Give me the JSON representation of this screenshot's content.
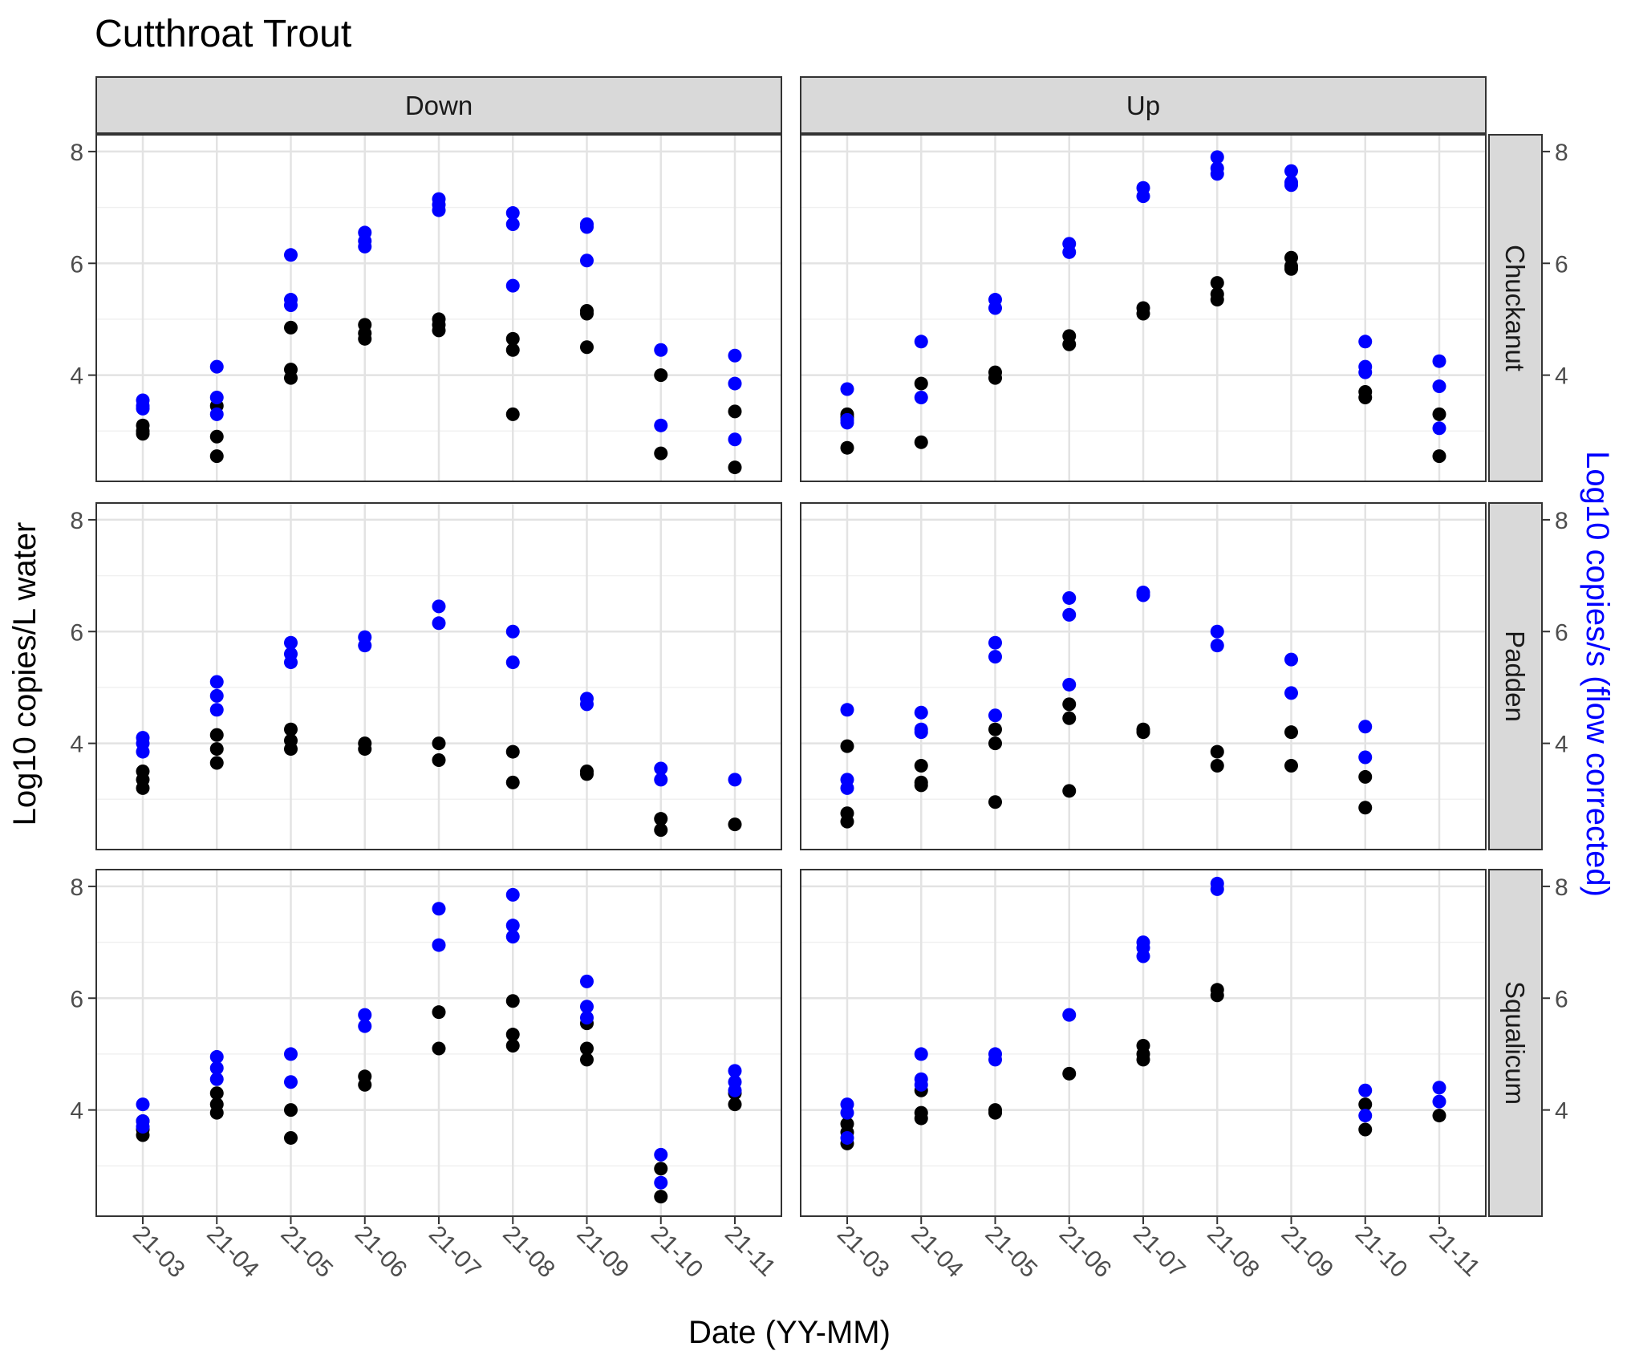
{
  "chart_data": {
    "type": "scatter",
    "title": "Cutthroat Trout",
    "xlabel": "Date (YY-MM)",
    "ylabel": "Log10 copies/L water",
    "ylabel_secondary": "Log10 copies/s (flow corrected)",
    "x_categories": [
      "21-03",
      "21-04",
      "21-05",
      "21-06",
      "21-07",
      "21-08",
      "21-09",
      "21-10",
      "21-11"
    ],
    "y_ticks": [
      4,
      6,
      8
    ],
    "ylim": [
      2.1,
      8.3
    ],
    "grid": true,
    "facet_columns": [
      "Down",
      "Up"
    ],
    "facet_rows": [
      "Chuckanut",
      "Padden",
      "Squalicum"
    ],
    "series_colors": {
      "copies_per_L": "#000000",
      "copies_per_s": "#0000ff"
    },
    "panels": [
      {
        "col": "Down",
        "row": "Chuckanut",
        "copies_per_L": [
          [
            "21-03",
            3.1
          ],
          [
            "21-03",
            3.0
          ],
          [
            "21-03",
            2.95
          ],
          [
            "21-04",
            3.45
          ],
          [
            "21-04",
            2.9
          ],
          [
            "21-04",
            2.55
          ],
          [
            "21-05",
            4.85
          ],
          [
            "21-05",
            4.1
          ],
          [
            "21-05",
            3.95
          ],
          [
            "21-06",
            4.9
          ],
          [
            "21-06",
            4.75
          ],
          [
            "21-06",
            4.65
          ],
          [
            "21-07",
            5.0
          ],
          [
            "21-07",
            4.9
          ],
          [
            "21-07",
            4.8
          ],
          [
            "21-08",
            4.65
          ],
          [
            "21-08",
            4.45
          ],
          [
            "21-08",
            3.3
          ],
          [
            "21-09",
            5.15
          ],
          [
            "21-09",
            5.1
          ],
          [
            "21-09",
            4.5
          ],
          [
            "21-10",
            4.0
          ],
          [
            "21-10",
            2.6
          ],
          [
            "21-11",
            3.35
          ],
          [
            "21-11",
            2.35
          ]
        ],
        "copies_per_s": [
          [
            "21-03",
            3.55
          ],
          [
            "21-03",
            3.45
          ],
          [
            "21-03",
            3.4
          ],
          [
            "21-04",
            4.15
          ],
          [
            "21-04",
            3.6
          ],
          [
            "21-04",
            3.3
          ],
          [
            "21-05",
            6.15
          ],
          [
            "21-05",
            5.35
          ],
          [
            "21-05",
            5.25
          ],
          [
            "21-06",
            6.55
          ],
          [
            "21-06",
            6.4
          ],
          [
            "21-06",
            6.3
          ],
          [
            "21-07",
            7.15
          ],
          [
            "21-07",
            7.05
          ],
          [
            "21-07",
            6.95
          ],
          [
            "21-08",
            6.9
          ],
          [
            "21-08",
            6.7
          ],
          [
            "21-08",
            5.6
          ],
          [
            "21-09",
            6.7
          ],
          [
            "21-09",
            6.65
          ],
          [
            "21-09",
            6.05
          ],
          [
            "21-10",
            4.45
          ],
          [
            "21-10",
            3.1
          ],
          [
            "21-11",
            4.35
          ],
          [
            "21-11",
            3.85
          ],
          [
            "21-11",
            2.85
          ]
        ]
      },
      {
        "col": "Up",
        "row": "Chuckanut",
        "copies_per_L": [
          [
            "21-03",
            3.3
          ],
          [
            "21-03",
            3.25
          ],
          [
            "21-03",
            2.7
          ],
          [
            "21-04",
            3.85
          ],
          [
            "21-04",
            2.8
          ],
          [
            "21-05",
            4.05
          ],
          [
            "21-05",
            3.95
          ],
          [
            "21-06",
            4.7
          ],
          [
            "21-06",
            4.55
          ],
          [
            "21-07",
            5.2
          ],
          [
            "21-07",
            5.1
          ],
          [
            "21-08",
            5.65
          ],
          [
            "21-08",
            5.45
          ],
          [
            "21-08",
            5.35
          ],
          [
            "21-09",
            6.1
          ],
          [
            "21-09",
            5.95
          ],
          [
            "21-09",
            5.9
          ],
          [
            "21-10",
            3.7
          ],
          [
            "21-10",
            3.6
          ],
          [
            "21-11",
            3.3
          ],
          [
            "21-11",
            2.55
          ]
        ],
        "copies_per_s": [
          [
            "21-03",
            3.75
          ],
          [
            "21-03",
            3.2
          ],
          [
            "21-03",
            3.15
          ],
          [
            "21-04",
            4.6
          ],
          [
            "21-04",
            3.6
          ],
          [
            "21-05",
            5.35
          ],
          [
            "21-05",
            5.2
          ],
          [
            "21-06",
            6.35
          ],
          [
            "21-06",
            6.2
          ],
          [
            "21-07",
            7.35
          ],
          [
            "21-07",
            7.2
          ],
          [
            "21-08",
            7.9
          ],
          [
            "21-08",
            7.7
          ],
          [
            "21-08",
            7.6
          ],
          [
            "21-09",
            7.65
          ],
          [
            "21-09",
            7.45
          ],
          [
            "21-09",
            7.4
          ],
          [
            "21-10",
            4.6
          ],
          [
            "21-10",
            4.15
          ],
          [
            "21-10",
            4.05
          ],
          [
            "21-11",
            4.25
          ],
          [
            "21-11",
            3.8
          ],
          [
            "21-11",
            3.05
          ]
        ]
      },
      {
        "col": "Down",
        "row": "Padden",
        "copies_per_L": [
          [
            "21-03",
            3.5
          ],
          [
            "21-03",
            3.35
          ],
          [
            "21-03",
            3.2
          ],
          [
            "21-04",
            4.15
          ],
          [
            "21-04",
            3.9
          ],
          [
            "21-04",
            3.65
          ],
          [
            "21-05",
            4.25
          ],
          [
            "21-05",
            4.05
          ],
          [
            "21-05",
            3.9
          ],
          [
            "21-06",
            4.0
          ],
          [
            "21-06",
            3.9
          ],
          [
            "21-07",
            4.0
          ],
          [
            "21-07",
            3.7
          ],
          [
            "21-08",
            3.85
          ],
          [
            "21-08",
            3.3
          ],
          [
            "21-09",
            3.5
          ],
          [
            "21-09",
            3.45
          ],
          [
            "21-10",
            2.65
          ],
          [
            "21-10",
            2.45
          ],
          [
            "21-11",
            2.55
          ]
        ],
        "copies_per_s": [
          [
            "21-03",
            4.1
          ],
          [
            "21-03",
            4.0
          ],
          [
            "21-03",
            3.85
          ],
          [
            "21-04",
            5.1
          ],
          [
            "21-04",
            4.85
          ],
          [
            "21-04",
            4.6
          ],
          [
            "21-05",
            5.8
          ],
          [
            "21-05",
            5.6
          ],
          [
            "21-05",
            5.45
          ],
          [
            "21-06",
            5.9
          ],
          [
            "21-06",
            5.75
          ],
          [
            "21-07",
            6.45
          ],
          [
            "21-07",
            6.15
          ],
          [
            "21-08",
            6.0
          ],
          [
            "21-08",
            5.45
          ],
          [
            "21-09",
            4.8
          ],
          [
            "21-09",
            4.7
          ],
          [
            "21-10",
            3.55
          ],
          [
            "21-10",
            3.35
          ],
          [
            "21-11",
            3.35
          ]
        ]
      },
      {
        "col": "Up",
        "row": "Padden",
        "copies_per_L": [
          [
            "21-03",
            3.95
          ],
          [
            "21-03",
            2.75
          ],
          [
            "21-03",
            2.6
          ],
          [
            "21-04",
            3.6
          ],
          [
            "21-04",
            3.3
          ],
          [
            "21-04",
            3.25
          ],
          [
            "21-05",
            4.25
          ],
          [
            "21-05",
            4.0
          ],
          [
            "21-05",
            2.95
          ],
          [
            "21-06",
            4.7
          ],
          [
            "21-06",
            4.45
          ],
          [
            "21-06",
            3.15
          ],
          [
            "21-07",
            4.25
          ],
          [
            "21-07",
            4.2
          ],
          [
            "21-08",
            3.85
          ],
          [
            "21-08",
            3.6
          ],
          [
            "21-09",
            4.2
          ],
          [
            "21-09",
            3.6
          ],
          [
            "21-10",
            3.4
          ],
          [
            "21-10",
            2.85
          ]
        ],
        "copies_per_s": [
          [
            "21-03",
            4.6
          ],
          [
            "21-03",
            3.35
          ],
          [
            "21-03",
            3.2
          ],
          [
            "21-04",
            4.55
          ],
          [
            "21-04",
            4.25
          ],
          [
            "21-04",
            4.2
          ],
          [
            "21-05",
            5.8
          ],
          [
            "21-05",
            5.55
          ],
          [
            "21-05",
            4.5
          ],
          [
            "21-06",
            6.6
          ],
          [
            "21-06",
            6.3
          ],
          [
            "21-06",
            5.05
          ],
          [
            "21-07",
            6.7
          ],
          [
            "21-07",
            6.65
          ],
          [
            "21-08",
            6.0
          ],
          [
            "21-08",
            5.75
          ],
          [
            "21-09",
            5.5
          ],
          [
            "21-09",
            4.9
          ],
          [
            "21-10",
            4.3
          ],
          [
            "21-10",
            3.75
          ]
        ]
      },
      {
        "col": "Down",
        "row": "Squalicum",
        "copies_per_L": [
          [
            "21-03",
            3.8
          ],
          [
            "21-03",
            3.65
          ],
          [
            "21-03",
            3.55
          ],
          [
            "21-04",
            4.3
          ],
          [
            "21-04",
            4.1
          ],
          [
            "21-04",
            3.95
          ],
          [
            "21-05",
            4.0
          ],
          [
            "21-05",
            3.5
          ],
          [
            "21-06",
            4.6
          ],
          [
            "21-06",
            4.45
          ],
          [
            "21-07",
            5.75
          ],
          [
            "21-07",
            5.1
          ],
          [
            "21-08",
            5.95
          ],
          [
            "21-08",
            5.35
          ],
          [
            "21-08",
            5.15
          ],
          [
            "21-09",
            5.55
          ],
          [
            "21-09",
            5.1
          ],
          [
            "21-09",
            4.9
          ],
          [
            "21-10",
            2.95
          ],
          [
            "21-10",
            2.45
          ],
          [
            "21-11",
            4.3
          ],
          [
            "21-11",
            4.1
          ]
        ],
        "copies_per_s": [
          [
            "21-03",
            4.1
          ],
          [
            "21-03",
            3.8
          ],
          [
            "21-03",
            3.7
          ],
          [
            "21-04",
            4.95
          ],
          [
            "21-04",
            4.75
          ],
          [
            "21-04",
            4.55
          ],
          [
            "21-05",
            5.0
          ],
          [
            "21-05",
            4.5
          ],
          [
            "21-06",
            5.7
          ],
          [
            "21-06",
            5.5
          ],
          [
            "21-07",
            7.6
          ],
          [
            "21-07",
            6.95
          ],
          [
            "21-08",
            7.85
          ],
          [
            "21-08",
            7.3
          ],
          [
            "21-08",
            7.1
          ],
          [
            "21-09",
            6.3
          ],
          [
            "21-09",
            5.85
          ],
          [
            "21-09",
            5.65
          ],
          [
            "21-10",
            3.2
          ],
          [
            "21-10",
            2.7
          ],
          [
            "21-11",
            4.7
          ],
          [
            "21-11",
            4.5
          ],
          [
            "21-11",
            4.35
          ]
        ]
      },
      {
        "col": "Up",
        "row": "Squalicum",
        "copies_per_L": [
          [
            "21-03",
            3.75
          ],
          [
            "21-03",
            3.6
          ],
          [
            "21-03",
            3.4
          ],
          [
            "21-04",
            4.35
          ],
          [
            "21-04",
            3.95
          ],
          [
            "21-04",
            3.85
          ],
          [
            "21-05",
            4.0
          ],
          [
            "21-05",
            3.95
          ],
          [
            "21-06",
            4.65
          ],
          [
            "21-07",
            5.15
          ],
          [
            "21-07",
            5.0
          ],
          [
            "21-07",
            4.9
          ],
          [
            "21-08",
            6.15
          ],
          [
            "21-08",
            6.05
          ],
          [
            "21-10",
            4.1
          ],
          [
            "21-10",
            3.65
          ],
          [
            "21-11",
            3.9
          ]
        ],
        "copies_per_s": [
          [
            "21-03",
            4.1
          ],
          [
            "21-03",
            3.95
          ],
          [
            "21-03",
            3.5
          ],
          [
            "21-04",
            5.0
          ],
          [
            "21-04",
            4.55
          ],
          [
            "21-04",
            4.45
          ],
          [
            "21-05",
            5.0
          ],
          [
            "21-05",
            4.9
          ],
          [
            "21-06",
            5.7
          ],
          [
            "21-07",
            7.0
          ],
          [
            "21-07",
            6.9
          ],
          [
            "21-07",
            6.75
          ],
          [
            "21-08",
            8.05
          ],
          [
            "21-08",
            7.95
          ],
          [
            "21-10",
            4.35
          ],
          [
            "21-10",
            3.9
          ],
          [
            "21-11",
            4.4
          ],
          [
            "21-11",
            4.15
          ]
        ]
      }
    ]
  }
}
